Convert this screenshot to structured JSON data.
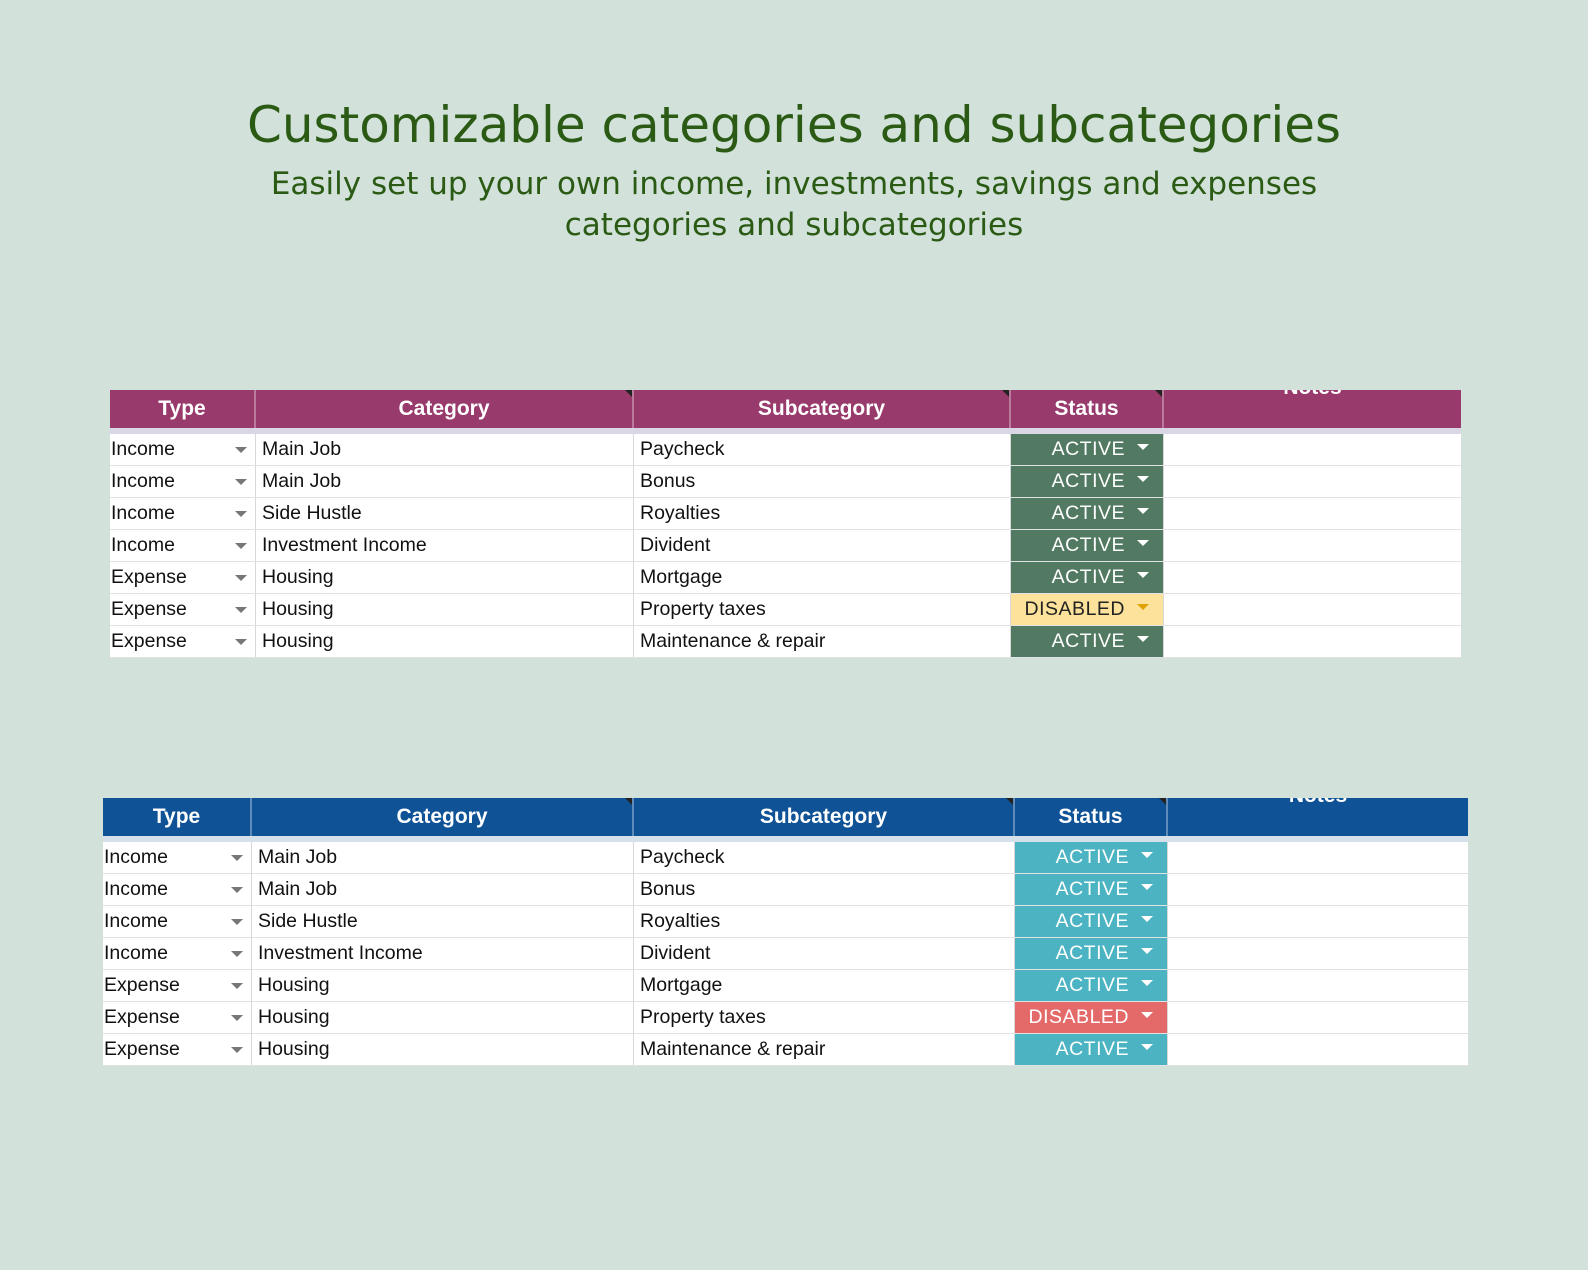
{
  "page": {
    "title": "Customizable categories and subcategories",
    "subtitle_line1": "Easily set up your own income, investments, savings and expenses",
    "subtitle_line2": "categories and subcategories"
  },
  "columns": {
    "type": "Type",
    "category": "Category",
    "subcategory": "Subcategory",
    "status": "Status",
    "notes": "Notes"
  },
  "colors": {
    "background": "#d2e2da",
    "title": "#2a5a14",
    "sheet1_header": "#983a6c",
    "sheet1_active": "#527a63",
    "sheet1_disabled": "#fce29b",
    "sheet2_header": "#0f5296",
    "sheet2_active": "#4bb3c2",
    "sheet2_disabled": "#e46a6a"
  },
  "icons": {
    "dropdown": "caret-down-icon"
  },
  "sheets": [
    {
      "rows": [
        {
          "type": "Income",
          "category": "Main Job",
          "subcategory": "Paycheck",
          "status": "ACTIVE",
          "notes": ""
        },
        {
          "type": "Income",
          "category": "Main Job",
          "subcategory": "Bonus",
          "status": "ACTIVE",
          "notes": ""
        },
        {
          "type": "Income",
          "category": "Side Hustle",
          "subcategory": "Royalties",
          "status": "ACTIVE",
          "notes": ""
        },
        {
          "type": "Income",
          "category": "Investment Income",
          "subcategory": "Divident",
          "status": "ACTIVE",
          "notes": ""
        },
        {
          "type": "Expense",
          "category": "Housing",
          "subcategory": "Mortgage",
          "status": "ACTIVE",
          "notes": ""
        },
        {
          "type": "Expense",
          "category": "Housing",
          "subcategory": "Property taxes",
          "status": "DISABLED",
          "notes": ""
        },
        {
          "type": "Expense",
          "category": "Housing",
          "subcategory": "Maintenance & repair",
          "status": "ACTIVE",
          "notes": ""
        }
      ]
    },
    {
      "rows": [
        {
          "type": "Income",
          "category": "Main Job",
          "subcategory": "Paycheck",
          "status": "ACTIVE",
          "notes": ""
        },
        {
          "type": "Income",
          "category": "Main Job",
          "subcategory": "Bonus",
          "status": "ACTIVE",
          "notes": ""
        },
        {
          "type": "Income",
          "category": "Side Hustle",
          "subcategory": "Royalties",
          "status": "ACTIVE",
          "notes": ""
        },
        {
          "type": "Income",
          "category": "Investment Income",
          "subcategory": "Divident",
          "status": "ACTIVE",
          "notes": ""
        },
        {
          "type": "Expense",
          "category": "Housing",
          "subcategory": "Mortgage",
          "status": "ACTIVE",
          "notes": ""
        },
        {
          "type": "Expense",
          "category": "Housing",
          "subcategory": "Property taxes",
          "status": "DISABLED",
          "notes": ""
        },
        {
          "type": "Expense",
          "category": "Housing",
          "subcategory": "Maintenance & repair",
          "status": "ACTIVE",
          "notes": ""
        }
      ]
    }
  ]
}
